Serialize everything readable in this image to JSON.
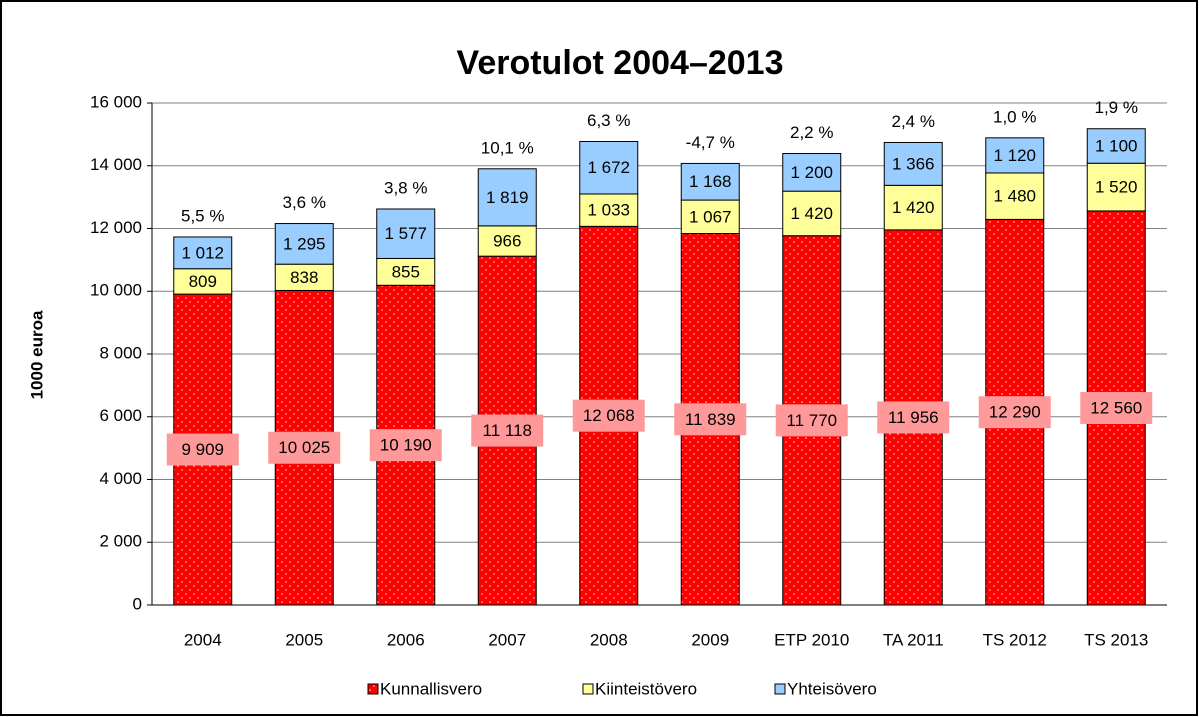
{
  "chart_data": {
    "type": "stacked_bar",
    "title": "Verotulot 2004–2013",
    "y_label": "1000 euroa",
    "categories": [
      "2004",
      "2005",
      "2006",
      "2007",
      "2008",
      "2009",
      "ETP 2010",
      "TA 2011",
      "TS 2012",
      "TS 2013"
    ],
    "series": [
      {
        "name": "Kunnallisvero",
        "color": "#ff0000",
        "values": [
          9909,
          10025,
          10190,
          11118,
          12068,
          11839,
          11770,
          11956,
          12290,
          12560
        ],
        "value_labels": [
          "9 909",
          "10 025",
          "10 190",
          "11 118",
          "12 068",
          "11 839",
          "11 770",
          "11 956",
          "12 290",
          "12 560"
        ]
      },
      {
        "name": "Kiinteistövero",
        "color": "#ffff99",
        "values": [
          809,
          838,
          855,
          966,
          1033,
          1067,
          1420,
          1420,
          1480,
          1520
        ],
        "value_labels": [
          "809",
          "838",
          "855",
          "966",
          "1 033",
          "1 067",
          "1 420",
          "1 420",
          "1 480",
          "1 520"
        ]
      },
      {
        "name": "Yhteisövero",
        "color": "#99ccff",
        "values": [
          1012,
          1295,
          1577,
          1819,
          1672,
          1168,
          1200,
          1366,
          1120,
          1100
        ],
        "value_labels": [
          "1 012",
          "1 295",
          "1 577",
          "1 819",
          "1 672",
          "1 168",
          "1 200",
          "1 366",
          "1 120",
          "1 100"
        ]
      }
    ],
    "growth_labels": [
      "5,5 %",
      "3,6 %",
      "3,8 %",
      "10,1 %",
      "6,3 %",
      "-4,7 %",
      "2,2 %",
      "2,4 %",
      "1,0 %",
      "1,9 %"
    ],
    "ylim": [
      0,
      16000
    ],
    "yticks": [
      0,
      {
        "value": 2000,
        "label": "2 000"
      },
      {
        "value": 4000,
        "label": "4 000"
      },
      {
        "value": 6000,
        "label": "6 000"
      },
      {
        "value": 8000,
        "label": "8 000"
      },
      {
        "value": 10000,
        "label": "10 000"
      },
      {
        "value": 12000,
        "label": "12 000"
      },
      {
        "value": 14000,
        "label": "14 000"
      },
      {
        "value": 16000,
        "label": "16 000"
      }
    ],
    "grid": true,
    "legend": "bottom"
  }
}
